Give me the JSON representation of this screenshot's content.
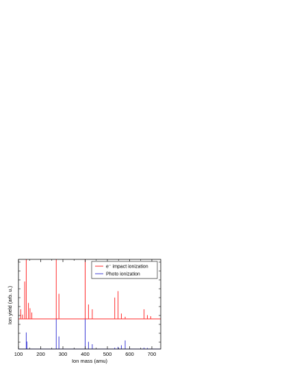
{
  "chart_data": {
    "type": "line",
    "xlabel": "Ion mass (amu)",
    "ylabel": "Ion yield (arb. u.)",
    "xlim": [
      100,
      740
    ],
    "xticks": [
      100,
      200,
      300,
      400,
      500,
      600,
      700
    ],
    "grid": false,
    "legend_position": "top-right",
    "series": [
      {
        "name": "e⁻ impact ionization",
        "color": "#ff2a2a",
        "baseline": 0.0,
        "peaks": [
          {
            "x": 110,
            "y": 0.18
          },
          {
            "x": 118,
            "y": 0.08
          },
          {
            "x": 128,
            "y": 0.7
          },
          {
            "x": 135,
            "y": 1.12
          },
          {
            "x": 145,
            "y": 0.3
          },
          {
            "x": 152,
            "y": 0.2
          },
          {
            "x": 160,
            "y": 0.12
          },
          {
            "x": 270,
            "y": 1.12
          },
          {
            "x": 282,
            "y": 0.47
          },
          {
            "x": 400,
            "y": 1.12
          },
          {
            "x": 415,
            "y": 0.27
          },
          {
            "x": 432,
            "y": 0.18
          },
          {
            "x": 533,
            "y": 0.4
          },
          {
            "x": 548,
            "y": 0.52
          },
          {
            "x": 563,
            "y": 0.1
          },
          {
            "x": 580,
            "y": 0.04
          },
          {
            "x": 665,
            "y": 0.18
          },
          {
            "x": 680,
            "y": 0.07
          },
          {
            "x": 695,
            "y": 0.05
          }
        ]
      },
      {
        "name": "Photo ionization",
        "color": "#3c3cd6",
        "baseline": 0.0,
        "peaks": [
          {
            "x": 135,
            "y": 0.62
          },
          {
            "x": 138,
            "y": 0.28
          },
          {
            "x": 270,
            "y": 1.12
          },
          {
            "x": 282,
            "y": 0.47
          },
          {
            "x": 400,
            "y": 1.12
          },
          {
            "x": 415,
            "y": 0.27
          },
          {
            "x": 432,
            "y": 0.18
          },
          {
            "x": 533,
            "y": 0.05
          },
          {
            "x": 548,
            "y": 0.08
          },
          {
            "x": 563,
            "y": 0.14
          },
          {
            "x": 580,
            "y": 0.32
          },
          {
            "x": 665,
            "y": 0.05
          },
          {
            "x": 680,
            "y": 0.04
          }
        ]
      }
    ]
  }
}
